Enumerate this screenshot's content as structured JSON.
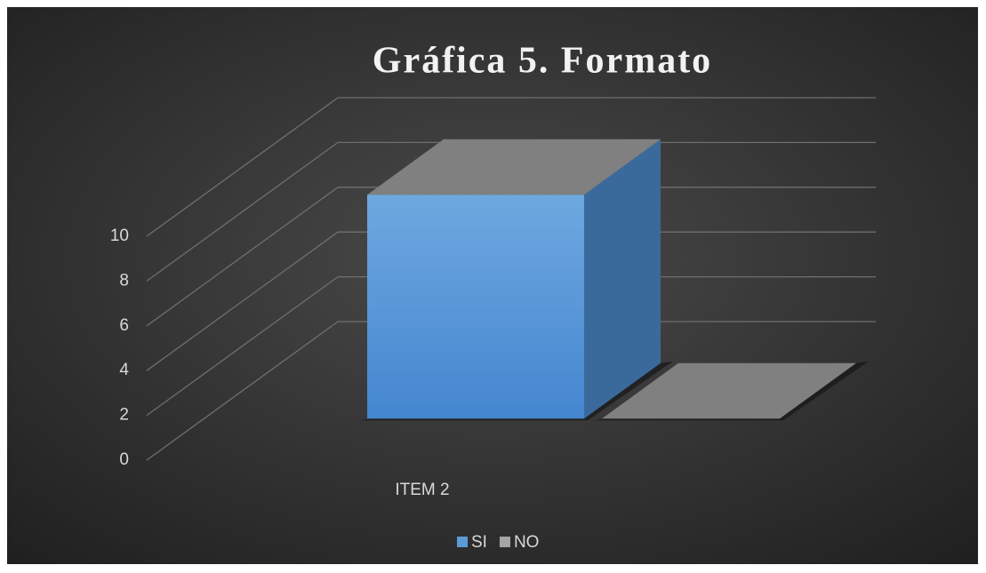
{
  "chart_data": {
    "type": "bar3d",
    "title": "Gráfica 5. Formato",
    "categories": [
      "ITEM 2"
    ],
    "series": [
      {
        "name": "SI",
        "color": "#5b9bd5",
        "values": [
          10
        ]
      },
      {
        "name": "NO",
        "color": "#a5a5a5",
        "values": [
          0
        ]
      }
    ],
    "ylim": [
      0,
      10
    ],
    "yticks": [
      0,
      2,
      4,
      6,
      8,
      10
    ],
    "grid": true,
    "legend": "bottom"
  }
}
